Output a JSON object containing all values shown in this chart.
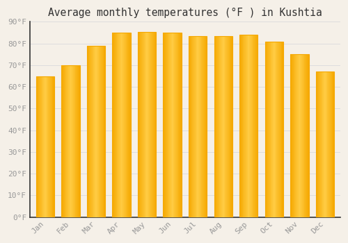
{
  "title": "Average monthly temperatures (°F ) in Kushtia",
  "months": [
    "Jan",
    "Feb",
    "Mar",
    "Apr",
    "May",
    "Jun",
    "Jul",
    "Aug",
    "Sep",
    "Oct",
    "Nov",
    "Dec"
  ],
  "values": [
    65,
    70,
    79,
    85,
    85.5,
    85,
    83.5,
    83.5,
    84,
    81,
    75,
    67
  ],
  "bar_color_center": "#FFCC44",
  "bar_color_edge": "#F5A800",
  "background_color": "#F5F0E8",
  "plot_bg_color": "#F5F0E8",
  "grid_color": "#DDDDDD",
  "ylim": [
    0,
    90
  ],
  "yticks": [
    0,
    10,
    20,
    30,
    40,
    50,
    60,
    70,
    80,
    90
  ],
  "ylabel_format": "°F",
  "title_fontsize": 10.5,
  "tick_fontsize": 8,
  "tick_color": "#999999",
  "axis_color": "#333333",
  "bar_width": 0.72
}
